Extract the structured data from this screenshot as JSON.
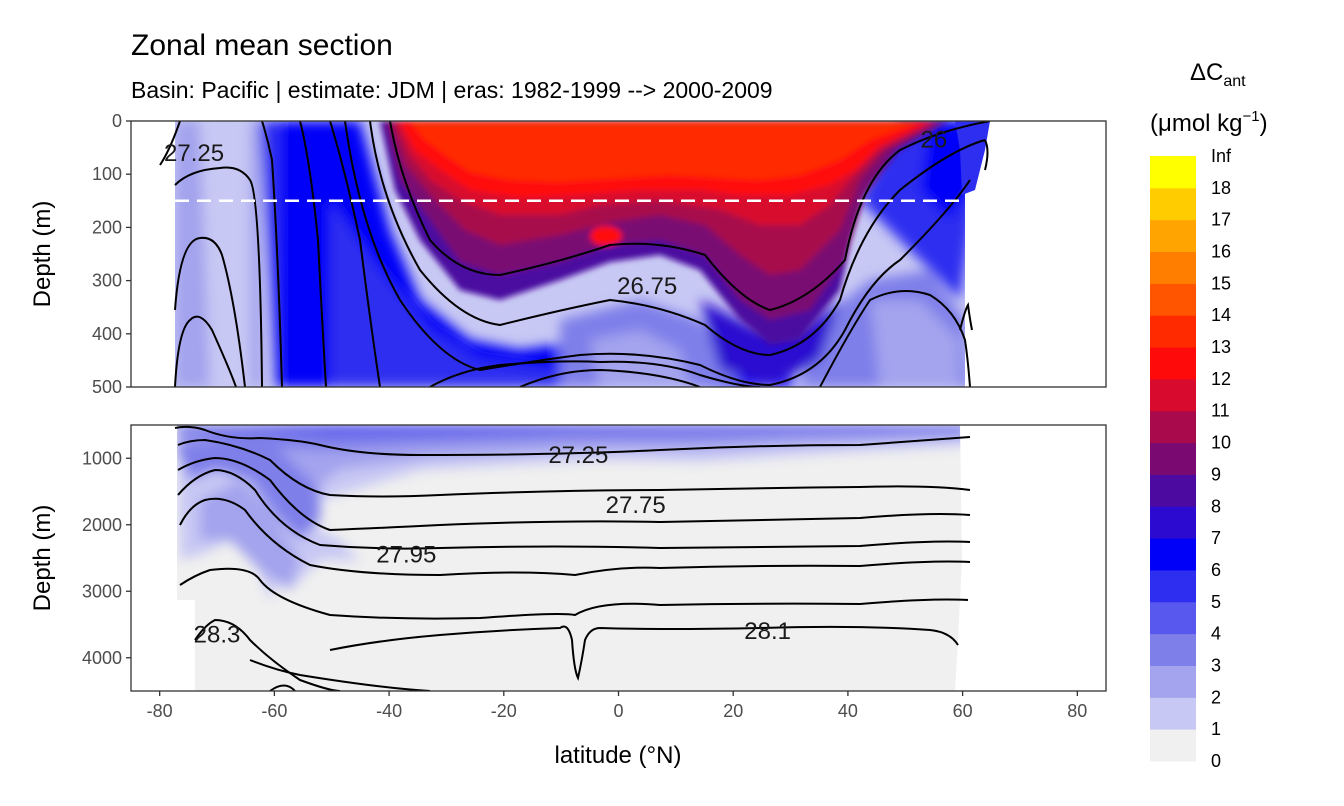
{
  "chart_data": {
    "type": "heatmap",
    "title": "Zonal mean section",
    "subtitle": "Basin: Pacific | estimate: JDM  | eras: 1982-1999 --> 2000-2009",
    "xlabel": "latitude (°N)",
    "ylabel": "Depth (m)",
    "xlim": [
      -85,
      85
    ],
    "x_ticks": [
      -80,
      -60,
      -40,
      -20,
      0,
      20,
      40,
      60,
      80
    ],
    "x_tick_labels": [
      "-80",
      "-60",
      "-40",
      "-20",
      "0",
      "20",
      "40",
      "60",
      "80"
    ],
    "reference_line": {
      "depth": 150,
      "style": "dashed",
      "color": "#ffffff"
    },
    "panels": [
      {
        "name": "upper",
        "ylim": [
          500,
          0
        ],
        "y_ticks": [
          0,
          100,
          200,
          300,
          400,
          500
        ],
        "y_tick_labels": [
          "0",
          "100",
          "200",
          "300",
          "400",
          "500"
        ]
      },
      {
        "name": "lower",
        "ylim": [
          4500,
          500
        ],
        "y_ticks": [
          1000,
          2000,
          3000,
          4000
        ],
        "y_tick_labels": [
          "1000",
          "2000",
          "3000",
          "4000"
        ]
      }
    ],
    "isopycnal_labels": [
      {
        "text": "27.25",
        "lat": -74,
        "depth": 60,
        "panel": "upper"
      },
      {
        "text": "26",
        "lat": 55,
        "depth": 35,
        "panel": "upper"
      },
      {
        "text": "26.75",
        "lat": 5,
        "depth": 310,
        "panel": "upper"
      },
      {
        "text": "27.25",
        "lat": -7,
        "depth": 950,
        "panel": "lower"
      },
      {
        "text": "27.75",
        "lat": 3,
        "depth": 1700,
        "panel": "lower"
      },
      {
        "text": "27.95",
        "lat": -37,
        "depth": 2450,
        "panel": "lower"
      },
      {
        "text": "28.3",
        "lat": -70,
        "depth": 3650,
        "panel": "lower"
      },
      {
        "text": "28.1",
        "lat": 26,
        "depth": 3600,
        "panel": "lower"
      }
    ],
    "legend": {
      "title_main": "ΔC",
      "title_sub": "ant",
      "units": "(μmol kg",
      "units_sup": "−1",
      "units_close": ")",
      "placement": "right",
      "levels": [
        "Inf",
        "18",
        "17",
        "16",
        "15",
        "14",
        "13",
        "12",
        "11",
        "10",
        "9",
        "8",
        "7",
        "6",
        "5",
        "4",
        "3",
        "2",
        "1",
        "0"
      ],
      "colors": [
        "#f0f0f0",
        "#c8c8f4",
        "#a3a3ee",
        "#7f7fea",
        "#5858ee",
        "#2e2ef0",
        "#0000f8",
        "#2c0ad0",
        "#4c0aa0",
        "#7a0a72",
        "#a80a4c",
        "#d80a2e",
        "#ff0a0a",
        "#ff2a00",
        "#ff5400",
        "#ff7e00",
        "#ffa400",
        "#ffcc00",
        "#ffff00"
      ]
    }
  }
}
